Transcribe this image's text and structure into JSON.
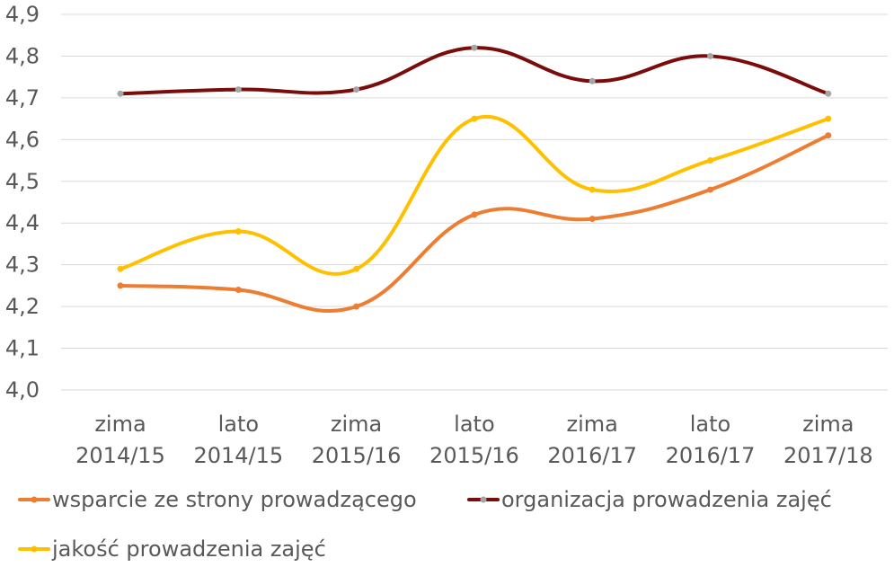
{
  "chart_data": {
    "type": "line",
    "categories": [
      [
        "zima",
        "2014/15"
      ],
      [
        "lato",
        "2014/15"
      ],
      [
        "zima",
        "2015/16"
      ],
      [
        "lato",
        "2015/16"
      ],
      [
        "zima",
        "2016/17"
      ],
      [
        "lato",
        "2016/17"
      ],
      [
        "zima",
        "2017/18"
      ]
    ],
    "ylim": [
      4.0,
      4.9
    ],
    "yticks": [
      "4,0",
      "4,1",
      "4,2",
      "4,3",
      "4,4",
      "4,5",
      "4,6",
      "4,7",
      "4,8",
      "4,9"
    ],
    "grid": true,
    "smooth": true,
    "legend_position": "bottom",
    "series": [
      {
        "name": "wsparcie ze strony prowadzącego",
        "color": "#ED7D31",
        "marker_color": "#ED7D31",
        "values": [
          4.25,
          4.24,
          4.2,
          4.42,
          4.41,
          4.48,
          4.61
        ]
      },
      {
        "name": "organizacja prowadzenia zajęć",
        "color": "#7B0C0C",
        "marker_color": "#A5A5A5",
        "values": [
          4.71,
          4.72,
          4.72,
          4.82,
          4.74,
          4.8,
          4.71
        ]
      },
      {
        "name": "jakość prowadzenia zajęć",
        "color": "#FFC000",
        "marker_color": "#FFC000",
        "values": [
          4.29,
          4.38,
          4.29,
          4.65,
          4.48,
          4.55,
          4.65
        ]
      }
    ]
  }
}
